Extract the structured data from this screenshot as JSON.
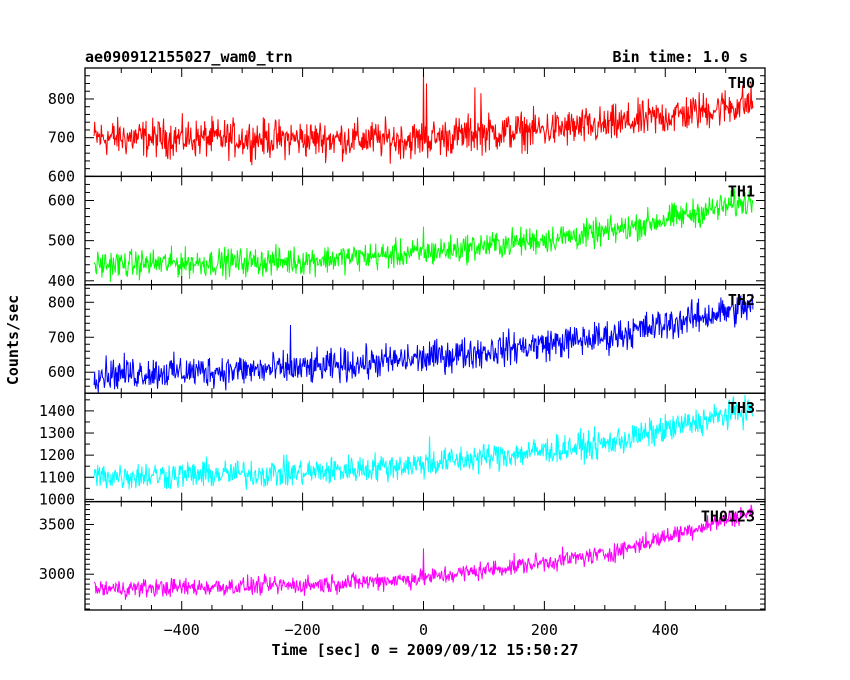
{
  "header": {
    "title": "ae090912155027_wam0_trn",
    "bin_time": "Bin time: 1.0 s"
  },
  "chart_data": {
    "type": "line",
    "xlabel": "Time [sec] 0 = 2009/09/12 15:50:27",
    "ylabel": "Counts/sec",
    "xlim": [
      -560,
      565
    ],
    "x_ticks": [
      -400,
      -200,
      0,
      200,
      400
    ],
    "x_tick_labels": [
      "−400",
      "−200",
      "0",
      "200",
      "400"
    ],
    "x_data_range": [
      -545,
      545
    ],
    "bin_seconds": 1.0,
    "grid": false,
    "panels": [
      {
        "name": "TH0",
        "color": "#ff0000",
        "ylim": [
          600,
          880
        ],
        "y_ticks": [
          600,
          700,
          800
        ],
        "y_tick_labels": [
          "600",
          "700",
          "800"
        ],
        "trend": [
          [
            -545,
            700
          ],
          [
            0,
            695
          ],
          [
            80,
            710
          ],
          [
            300,
            730
          ],
          [
            545,
            790
          ]
        ],
        "noise_amplitude": 42,
        "spikes": [
          [
            0,
            880
          ],
          [
            5,
            840
          ],
          [
            85,
            830
          ],
          [
            95,
            815
          ]
        ]
      },
      {
        "name": "TH1",
        "color": "#00ff00",
        "ylim": [
          390,
          660
        ],
        "y_ticks": [
          400,
          500,
          600
        ],
        "y_tick_labels": [
          "400",
          "500",
          "600"
        ],
        "trend": [
          [
            -545,
            440
          ],
          [
            -200,
            450
          ],
          [
            0,
            470
          ],
          [
            300,
            520
          ],
          [
            545,
            600
          ]
        ],
        "noise_amplitude": 30,
        "spikes": [
          [
            0,
            535
          ]
        ]
      },
      {
        "name": "TH2",
        "color": "#0000ff",
        "ylim": [
          540,
          850
        ],
        "y_ticks": [
          600,
          700,
          800
        ],
        "y_tick_labels": [
          "600",
          "700",
          "800"
        ],
        "trend": [
          [
            -545,
            595
          ],
          [
            -200,
            610
          ],
          [
            0,
            640
          ],
          [
            300,
            700
          ],
          [
            545,
            790
          ]
        ],
        "noise_amplitude": 40,
        "spikes": [
          [
            -220,
            735
          ]
        ]
      },
      {
        "name": "TH3",
        "color": "#00ffff",
        "ylim": [
          990,
          1480
        ],
        "y_ticks": [
          1000,
          1100,
          1200,
          1300,
          1400
        ],
        "y_tick_labels": [
          "1000",
          "1100",
          "1200",
          "1300",
          "1400"
        ],
        "trend": [
          [
            -545,
            1105
          ],
          [
            -200,
            1120
          ],
          [
            0,
            1160
          ],
          [
            300,
            1250
          ],
          [
            545,
            1410
          ]
        ],
        "noise_amplitude": 55,
        "spikes": [
          [
            10,
            1285
          ]
        ]
      },
      {
        "name": "TH0123",
        "color": "#ff00ff",
        "ylim": [
          2640,
          3730
        ],
        "y_ticks": [
          3000,
          3500
        ],
        "y_tick_labels": [
          "3000",
          "3500"
        ],
        "trend": [
          [
            -545,
            2850
          ],
          [
            -200,
            2890
          ],
          [
            0,
            2960
          ],
          [
            300,
            3200
          ],
          [
            545,
            3630
          ]
        ],
        "noise_amplitude": 80,
        "spikes": [
          [
            0,
            3260
          ]
        ]
      }
    ]
  }
}
